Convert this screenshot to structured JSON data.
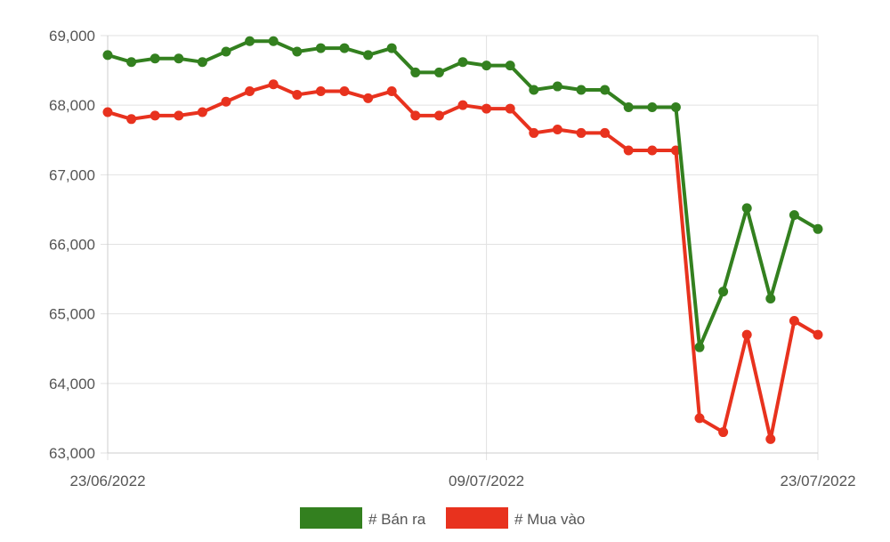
{
  "chart_data": {
    "type": "line",
    "title": "",
    "xlabel": "",
    "ylabel": "",
    "ylim": [
      63000,
      69000
    ],
    "y_ticks": [
      "69,000",
      "68,000",
      "67,000",
      "66,000",
      "65,000",
      "64,000",
      "63,000"
    ],
    "y_tick_values": [
      69000,
      68000,
      67000,
      66000,
      65000,
      64000,
      63000
    ],
    "x_ticks": [
      {
        "label": "23/06/2022",
        "index": 0
      },
      {
        "label": "09/07/2022",
        "index": 16
      },
      {
        "label": "23/07/2022",
        "index": 30
      }
    ],
    "grid": true,
    "legend_position": "bottom",
    "series": [
      {
        "name": "# Bán ra",
        "color": "#33801f",
        "values": [
          68720,
          68620,
          68670,
          68670,
          68620,
          68770,
          68920,
          68920,
          68770,
          68820,
          68820,
          68720,
          68820,
          68470,
          68470,
          68620,
          68570,
          68570,
          68220,
          68270,
          68220,
          68220,
          67970,
          67970,
          67970,
          64520,
          65320,
          66520,
          65220,
          66420,
          66220
        ]
      },
      {
        "name": "# Mua vào",
        "color": "#e8321e",
        "values": [
          67900,
          67800,
          67850,
          67850,
          67900,
          68050,
          68200,
          68300,
          68150,
          68200,
          68200,
          68100,
          68200,
          67850,
          67850,
          68000,
          67950,
          67950,
          67600,
          67650,
          67600,
          67600,
          67350,
          67350,
          67350,
          63500,
          63300,
          64700,
          63200,
          64900,
          64700
        ]
      }
    ]
  }
}
